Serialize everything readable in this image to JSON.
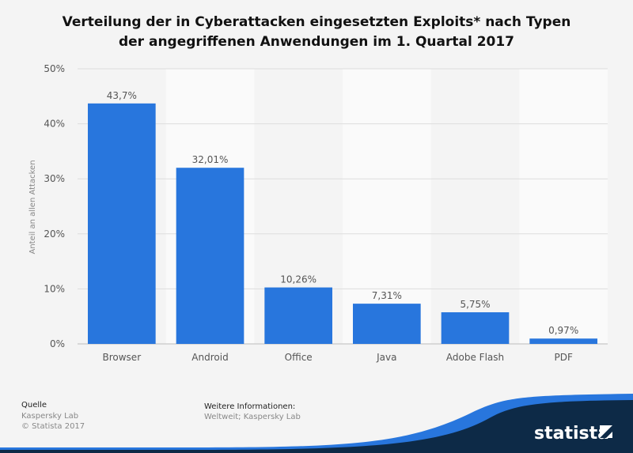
{
  "chart_data": {
    "type": "bar",
    "title_lines": [
      "Verteilung der in Cyberattacken eingesetzten Exploits* nach Typen",
      "der angegriffenen Anwendungen im 1. Quartal 2017"
    ],
    "categories": [
      "Browser",
      "Android",
      "Office",
      "Java",
      "Adobe Flash",
      "PDF"
    ],
    "values": [
      43.7,
      32.01,
      10.26,
      7.31,
      5.75,
      0.97
    ],
    "data_labels": [
      "43,7%",
      "32,01%",
      "10,26%",
      "7,31%",
      "5,75%",
      "0,97%"
    ],
    "xlabel": "",
    "ylabel": "Anteil an allen Attacken",
    "ylim": [
      0,
      50
    ],
    "yticks": [
      0,
      10,
      20,
      30,
      40,
      50
    ],
    "ytick_labels": [
      "0%",
      "10%",
      "20%",
      "30%",
      "40%",
      "50%"
    ],
    "grid": true,
    "bar_color": "#2876dd"
  },
  "footer": {
    "source_heading": "Quelle",
    "source": "Kaspersky Lab",
    "copyright": "© Statista 2017",
    "info_heading": "Weitere Informationen:",
    "info": "Weltweit; Kaspersky Lab",
    "logo_text": "statista"
  }
}
